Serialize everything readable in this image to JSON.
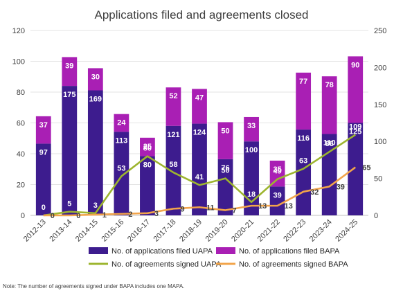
{
  "chart_data": {
    "type": "bar",
    "title": "Applications filed and agreements closed",
    "categories": [
      "2012-13",
      "2013-14",
      "2014-15",
      "2015-16",
      "2016-17",
      "2017-18",
      "2018-19",
      "2019-20",
      "2020-21",
      "2021-22",
      "2022-23",
      "2023-24",
      "2024-25"
    ],
    "y_left": {
      "ylim": [
        0,
        120
      ],
      "ticks": [
        0,
        20,
        40,
        60,
        80,
        100,
        120
      ]
    },
    "y_right": {
      "ylim": [
        0,
        250
      ],
      "ticks": [
        0,
        50,
        100,
        150,
        200,
        250
      ]
    },
    "grid": true,
    "legend_position": "bottom",
    "bar_series": [
      {
        "name": "No. of applications filed UAPA",
        "color": "#3d1c8e",
        "axis": "left",
        "stack": "a",
        "values": [
          97,
          175,
          169,
          113,
          80,
          121,
          124,
          76,
          100,
          39,
          116,
          110,
          125
        ]
      },
      {
        "name": "No. of applications filed BAPA",
        "color": "#a91fb4",
        "axis": "left",
        "stack": "a",
        "values": [
          37,
          39,
          30,
          24,
          25,
          52,
          47,
          50,
          33,
          35,
          77,
          78,
          90
        ]
      }
    ],
    "line_series": [
      {
        "name": "No. of agreements signed UAPA",
        "color": "#9db52f",
        "axis": "right",
        "values": [
          0,
          5,
          3,
          53,
          80,
          58,
          41,
          50,
          18,
          49,
          63,
          86,
          109
        ]
      },
      {
        "name": "No. of agreements signed BAPA",
        "color": "#f2a44a",
        "axis": "right",
        "values": [
          0,
          0,
          1,
          2,
          3,
          9,
          11,
          7,
          13,
          13,
          32,
          39,
          65
        ]
      }
    ],
    "bar_label_values_displayed": {
      "uapa": [
        "97",
        "175",
        "169",
        "113",
        "80",
        "121",
        "124",
        "76",
        "100",
        "39",
        "116",
        "110",
        "125"
      ],
      "bapa": [
        "37",
        "39",
        "30",
        "24",
        "25",
        "52",
        "47",
        "50",
        "33",
        "35",
        "77",
        "78",
        "90"
      ]
    }
  },
  "legend": {
    "items": [
      {
        "label": "No. of applications filed UAPA",
        "kind": "bar",
        "color": "#3d1c8e"
      },
      {
        "label": "No. of applications filed BAPA",
        "kind": "bar",
        "color": "#a91fb4"
      },
      {
        "label": "No. of agreements signed UAPA",
        "kind": "line",
        "color": "#9db52f"
      },
      {
        "label": "No. of agreements signed BAPA",
        "kind": "line",
        "color": "#f2a44a"
      }
    ]
  },
  "note": "Note: The number of agreements signed under BAPA includes one MAPA."
}
